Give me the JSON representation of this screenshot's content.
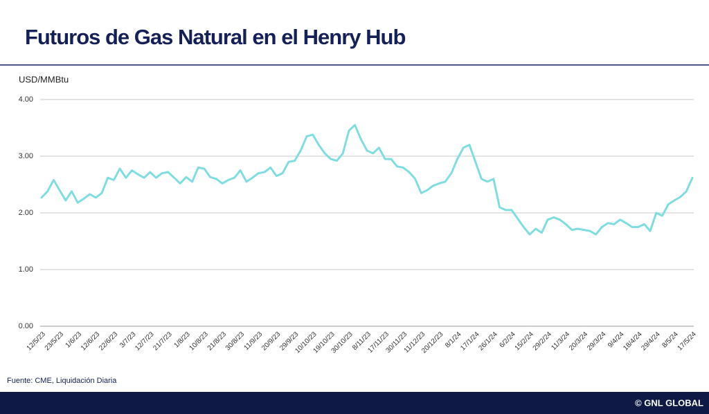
{
  "chart_data": {
    "type": "line",
    "title": "Futuros de Gas Natural en el Henry Hub",
    "y_label": "USD/MMBtu",
    "source": "Fuente: CME, Liquidación Diaria",
    "color": "#7fdde0",
    "grid": true,
    "ylim": [
      0,
      4
    ],
    "yticks": [
      {
        "value": 0,
        "label": "0.00"
      },
      {
        "value": 1,
        "label": "1.00"
      },
      {
        "value": 2,
        "label": "2.00"
      },
      {
        "value": 3,
        "label": "3.00"
      },
      {
        "value": 4,
        "label": "4.00"
      }
    ],
    "categories": [
      "12/5/23",
      null,
      null,
      "23/5/23",
      null,
      null,
      "1/6/23",
      null,
      null,
      "12/6/23",
      null,
      null,
      "22/6/23",
      null,
      null,
      "3/7/23",
      null,
      null,
      "12/7/23",
      null,
      null,
      "21/7/23",
      null,
      null,
      "1/8/23",
      null,
      null,
      "10/8/23",
      null,
      null,
      "21/8/23",
      null,
      null,
      "30/8/23",
      null,
      null,
      "11/9/23",
      null,
      null,
      "20/9/23",
      null,
      null,
      "29/9/23",
      null,
      null,
      "10/10/23",
      null,
      null,
      "19/10/23",
      null,
      null,
      "30/10/23",
      null,
      null,
      "8/11/23",
      null,
      null,
      "17/11/23",
      null,
      null,
      "30/11/23",
      null,
      null,
      "11/12/23",
      null,
      null,
      "20/12/23",
      null,
      null,
      "8/1/24",
      null,
      null,
      "17/1/24",
      null,
      null,
      "26/1/24",
      null,
      null,
      "6/2/24",
      null,
      null,
      "15/2/24",
      null,
      null,
      "29/2/24",
      null,
      null,
      "11/3/24",
      null,
      null,
      "20/3/24",
      null,
      null,
      "29/3/24",
      null,
      null,
      "9/4/24",
      null,
      null,
      "18/4/24",
      null,
      null,
      "29/4/24",
      null,
      null,
      "8/5/24",
      null,
      null,
      "17/5/24"
    ],
    "values": [
      2.27,
      2.38,
      2.58,
      2.4,
      2.22,
      2.38,
      2.18,
      2.25,
      2.33,
      2.27,
      2.35,
      2.62,
      2.58,
      2.78,
      2.62,
      2.75,
      2.68,
      2.62,
      2.72,
      2.62,
      2.7,
      2.72,
      2.62,
      2.52,
      2.63,
      2.55,
      2.8,
      2.78,
      2.63,
      2.6,
      2.52,
      2.58,
      2.62,
      2.75,
      2.55,
      2.62,
      2.7,
      2.72,
      2.8,
      2.65,
      2.7,
      2.9,
      2.92,
      3.1,
      3.35,
      3.38,
      3.2,
      3.05,
      2.95,
      2.92,
      3.05,
      3.45,
      3.55,
      3.3,
      3.1,
      3.05,
      3.15,
      2.95,
      2.95,
      2.82,
      2.8,
      2.72,
      2.6,
      2.35,
      2.4,
      2.48,
      2.52,
      2.55,
      2.7,
      2.95,
      3.15,
      3.2,
      2.9,
      2.6,
      2.55,
      2.6,
      2.1,
      2.05,
      2.05,
      1.9,
      1.75,
      1.62,
      1.72,
      1.65,
      1.88,
      1.92,
      1.88,
      1.8,
      1.7,
      1.72,
      1.7,
      1.68,
      1.62,
      1.75,
      1.82,
      1.8,
      1.88,
      1.82,
      1.75,
      1.75,
      1.8,
      1.68,
      2.0,
      1.95,
      2.15,
      2.22,
      2.28,
      2.38,
      2.62
    ]
  },
  "footer": {
    "credit": "© GNL GLOBAL"
  }
}
